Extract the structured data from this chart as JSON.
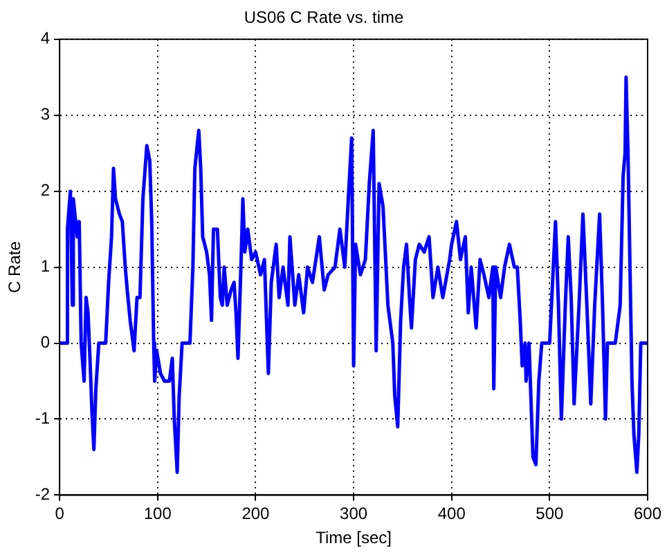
{
  "chart_data": {
    "type": "line",
    "title": "US06 C Rate vs. time",
    "xlabel": "Time [sec]",
    "ylabel": "C Rate",
    "x": [
      0,
      7,
      8,
      11,
      13,
      14,
      18,
      20,
      22,
      25,
      27,
      29,
      31,
      33,
      35,
      37,
      40,
      47,
      50,
      53,
      55,
      57,
      61,
      64,
      67,
      69,
      72,
      76,
      79,
      82,
      85,
      89,
      92,
      94,
      96,
      97,
      99,
      103,
      107,
      112,
      115,
      117,
      120,
      122,
      125,
      133,
      136,
      138,
      142,
      144,
      146,
      150,
      153,
      155,
      157,
      161,
      164,
      166,
      168,
      171,
      175,
      178,
      180,
      182,
      185,
      187,
      189,
      192,
      196,
      200,
      205,
      209,
      213,
      216,
      221,
      224,
      228,
      233,
      235,
      240,
      244,
      249,
      253,
      258,
      265,
      270,
      274,
      281,
      286,
      291,
      295,
      298,
      300,
      302,
      307,
      312,
      316,
      320,
      323,
      326,
      330,
      335,
      340,
      342,
      345,
      348,
      351,
      354,
      357,
      359,
      363,
      367,
      372,
      377,
      381,
      386,
      391,
      398,
      400,
      405,
      409,
      414,
      417,
      420,
      425,
      429,
      433,
      438,
      442,
      443,
      445,
      450,
      454,
      459,
      464,
      467,
      470,
      472,
      475,
      476,
      479,
      483,
      486,
      489,
      492,
      500,
      503,
      506,
      509,
      512,
      516,
      519,
      522,
      525,
      530,
      534,
      538,
      542,
      546,
      551,
      554,
      557,
      559,
      567,
      572,
      575,
      577,
      578,
      580,
      582,
      584,
      586,
      589,
      591,
      593,
      600
    ],
    "series": [
      {
        "color": "#0000ff",
        "values": [
          0,
          0,
          1.5,
          2.0,
          0.5,
          1.9,
          1.4,
          1.6,
          0,
          -0.5,
          0.6,
          0.4,
          -0.2,
          -0.9,
          -1.4,
          -0.6,
          0,
          0,
          0.8,
          1.4,
          2.3,
          1.9,
          1.7,
          1.6,
          1.0,
          0.7,
          0.3,
          -0.1,
          0.6,
          0.6,
          1.9,
          2.6,
          2.4,
          1.6,
          0,
          -0.5,
          -0.1,
          -0.4,
          -0.5,
          -0.5,
          -0.2,
          -1.0,
          -1.7,
          -0.7,
          0,
          0,
          1.0,
          2.3,
          2.8,
          2.3,
          1.4,
          1.2,
          0.9,
          0.3,
          1.5,
          1.5,
          0.6,
          0.5,
          1.0,
          0.5,
          0.7,
          0.8,
          0.4,
          -0.2,
          1.0,
          1.9,
          1.2,
          1.5,
          1.1,
          1.2,
          0.9,
          1.1,
          -0.4,
          0.8,
          1.3,
          0.6,
          1.0,
          0.5,
          1.4,
          0.5,
          0.9,
          0.4,
          1.0,
          0.8,
          1.4,
          0.7,
          0.9,
          1.0,
          1.5,
          1.0,
          2.0,
          2.7,
          -0.3,
          1.3,
          0.9,
          1.1,
          2.1,
          2.8,
          -0.1,
          2.1,
          1.8,
          0.5,
          0,
          -0.7,
          -1.1,
          0.3,
          1.0,
          1.3,
          0.6,
          0.2,
          1.1,
          1.3,
          1.2,
          1.4,
          0.6,
          1.0,
          0.6,
          1.1,
          1.3,
          1.6,
          1.1,
          1.4,
          0.4,
          1.0,
          0.2,
          1.1,
          0.9,
          0.6,
          1.0,
          -0.6,
          1.0,
          0.6,
          1.0,
          1.3,
          1.0,
          1.0,
          0.3,
          -0.3,
          0,
          -0.5,
          0,
          -1.5,
          -1.6,
          -0.5,
          0,
          0,
          0.8,
          1.6,
          0.5,
          -1.0,
          0.5,
          1.4,
          0.6,
          -0.8,
          0.5,
          1.7,
          0.5,
          -0.8,
          0.5,
          1.7,
          0.5,
          -1.0,
          0,
          0,
          0.5,
          2.2,
          2.5,
          3.5,
          2.5,
          1.0,
          -0.5,
          -1.2,
          -1.7,
          -1.2,
          0,
          0
        ]
      }
    ],
    "xlim": [
      0,
      600
    ],
    "xticks": [
      0,
      100,
      200,
      300,
      400,
      500,
      600
    ],
    "ylim": [
      -2,
      4
    ],
    "yticks": [
      -2,
      -1,
      0,
      1,
      2,
      3,
      4
    ],
    "grid": true,
    "legend": false,
    "marker": "none",
    "line_style": "solid"
  }
}
